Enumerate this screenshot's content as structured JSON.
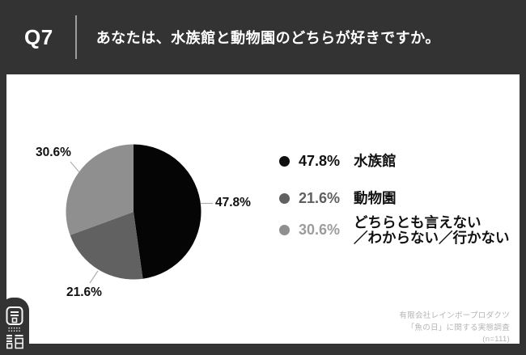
{
  "header": {
    "question_number": "Q7",
    "question_text": "あなたは、水族館と動物園のどちらが好きですか。"
  },
  "chart_data": {
    "type": "pie",
    "title": "あなたは、水族館と動物園のどちらが好きですか。",
    "labels": [
      "水族館",
      "動物園",
      "どちらとも言えない／わからない／行かない"
    ],
    "values": [
      47.8,
      21.6,
      30.6
    ],
    "percent_labels": [
      "47.8%",
      "21.6%",
      "30.6%"
    ],
    "colors": [
      "#050505",
      "#616161",
      "#8f8f8f"
    ],
    "start_angle": "top",
    "direction": "clockwise",
    "legend_position": "right"
  },
  "legend": {
    "items": [
      {
        "percent": "47.8%",
        "label": "水族館",
        "color": "#0f0f0f",
        "percent_color": "#111111"
      },
      {
        "percent": "21.6%",
        "label": "動物園",
        "color": "#616161",
        "percent_color": "#5f5f5f"
      },
      {
        "percent": "30.6%",
        "label": "どちらとも言えない\n／わからない／行かない",
        "color": "#8f8f8f",
        "percent_color": "#9c9c9c"
      }
    ]
  },
  "footer": {
    "credit_line1": "有限会社レインボープロダクツ",
    "credit_line2": "「魚の日」に関する実態調査",
    "credit_line3": "(n=111)"
  },
  "logo": {
    "icon": "sushi-brand-logo"
  }
}
